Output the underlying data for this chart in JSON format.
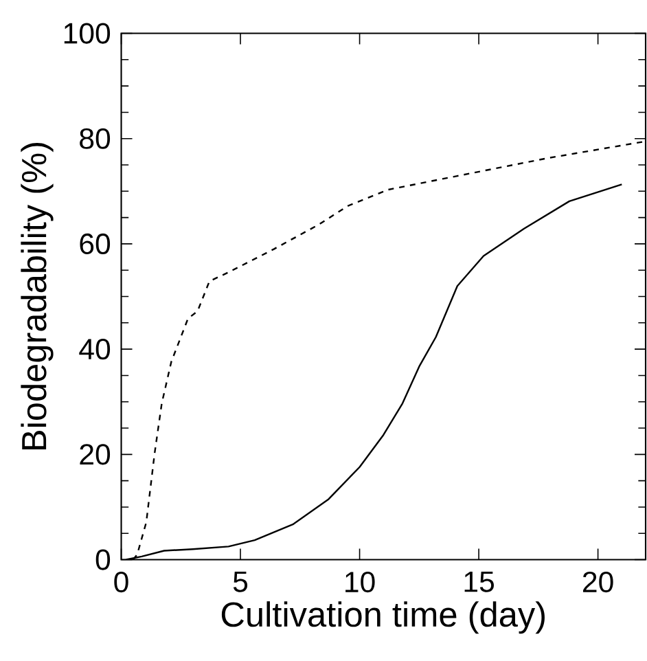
{
  "chart_data": {
    "type": "line",
    "xlabel": "Cultivation time (day)",
    "ylabel": "Biodegradability (%)",
    "xlim": [
      0,
      22
    ],
    "ylim": [
      0,
      100
    ],
    "xticks": [
      0,
      5,
      10,
      15,
      20
    ],
    "yticks": [
      0,
      20,
      40,
      60,
      80,
      100
    ],
    "marker": "none",
    "series": [
      {
        "color": "#000000",
        "line_style": "dashed",
        "x": [
          0.5,
          0.67,
          1.05,
          1.4,
          1.7,
          2.1,
          2.8,
          3.2,
          3.7,
          4.5,
          6.4,
          8.3,
          9.5,
          11.2,
          14.1,
          17.9,
          21.9
        ],
        "values": [
          0,
          1,
          7.1,
          20.2,
          29.7,
          37.6,
          45.8,
          47.2,
          52.9,
          54.6,
          59,
          63.7,
          67.2,
          70.3,
          72.9,
          76.3,
          79.4
        ]
      },
      {
        "color": "#000000",
        "line_style": "solid",
        "x": [
          0.2,
          0.86,
          1.8,
          3,
          4.5,
          5.6,
          7.2,
          8.7,
          10,
          11,
          11.8,
          12.5,
          13.2,
          14.1,
          15.2,
          16.9,
          18.8,
          21
        ],
        "values": [
          0,
          0.6,
          1.7,
          2,
          2.5,
          3.7,
          6.7,
          11.5,
          17.6,
          23.7,
          29.7,
          36.7,
          42.3,
          52,
          57.7,
          62.9,
          68.1,
          71.3
        ]
      }
    ]
  }
}
